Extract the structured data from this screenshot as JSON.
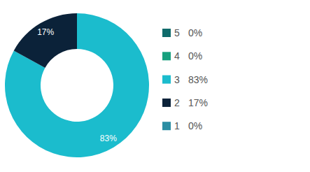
{
  "chart_data": {
    "type": "pie",
    "categories": [
      "5",
      "4",
      "3",
      "2",
      "1"
    ],
    "values": [
      0,
      0,
      83,
      17,
      0
    ],
    "value_labels": [
      "0%",
      "0%",
      "83%",
      "17%",
      "0%"
    ],
    "colors": [
      "#0f6b6b",
      "#17a07e",
      "#1bbccd",
      "#0b2239",
      "#2b8ea3"
    ],
    "data_labels": true,
    "legend": "right"
  }
}
